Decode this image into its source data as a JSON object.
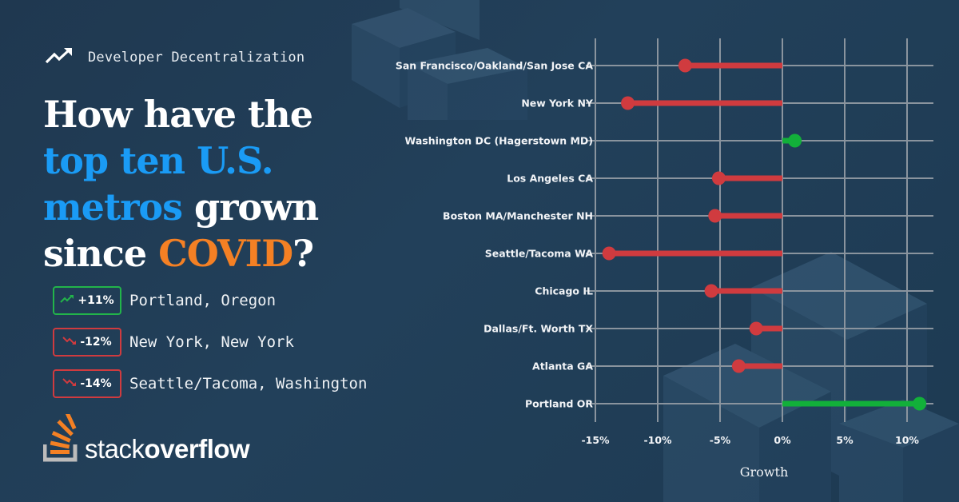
{
  "kicker": {
    "icon": "trending-up-icon",
    "text": "Developer Decentralization"
  },
  "headline": {
    "part1": "How have the",
    "part2": "top ten U.S.",
    "part3": "metros",
    "part4": " grown",
    "part5": "since ",
    "part6": "COVID",
    "part7": "?"
  },
  "highlights": [
    {
      "badge": "+11%",
      "direction": "up",
      "label": "Portland, Oregon",
      "color": "#22b44a"
    },
    {
      "badge": "-12%",
      "direction": "down",
      "label": "New York, New York",
      "color": "#d03b3f"
    },
    {
      "badge": "-14%",
      "direction": "down",
      "label": "Seattle/Tacoma, Washington",
      "color": "#d03b3f"
    }
  ],
  "logo": {
    "light": "stack",
    "bold": "overflow"
  },
  "colors": {
    "background": "#21405a",
    "accent_blue": "#1a9bf5",
    "accent_orange": "#f48024",
    "negative": "#d03b3f",
    "positive": "#12b03a",
    "grid": "#8a949e"
  },
  "chart_data": {
    "type": "bar",
    "subtype": "lollipop-horizontal",
    "title": "How have the top ten U.S. metros grown since COVID?",
    "xlabel": "Growth",
    "ylabel": "",
    "xlim": [
      -15,
      12
    ],
    "x_ticks": [
      "-15%",
      "-10%",
      "-5%",
      "0%",
      "5%",
      "10%"
    ],
    "grid": true,
    "legend": null,
    "categories": [
      "San Francisco/Oakland/San Jose CA",
      "New York NY",
      "Washington DC (Hagerstown MD)",
      "Los Angeles CA",
      "Boston MA/Manchester NH",
      "Seattle/Tacoma WA",
      "Chicago IL",
      "Dallas/Ft. Worth TX",
      "Atlanta GA",
      "Portland OR"
    ],
    "values": [
      -7.8,
      -12.4,
      1.0,
      -5.1,
      -5.4,
      -13.9,
      -5.7,
      -2.1,
      -3.5,
      11.0
    ],
    "units": "%"
  }
}
